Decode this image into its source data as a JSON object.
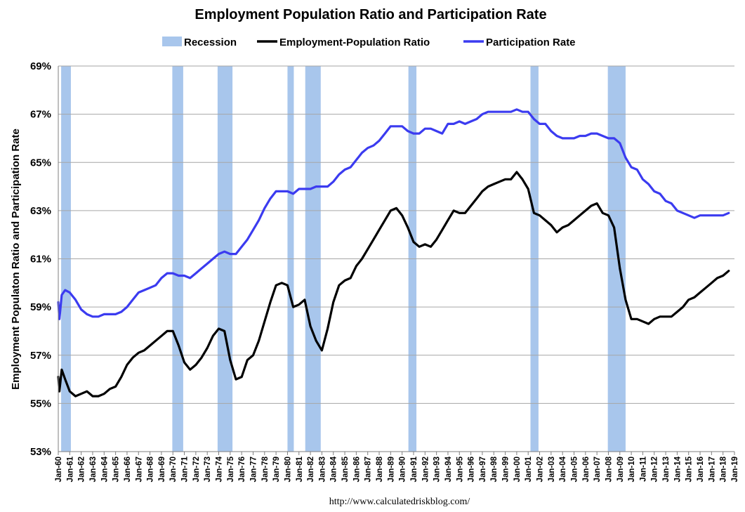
{
  "chart_data": {
    "type": "line",
    "title": "Employment Population Ratio and Participation Rate",
    "xlabel": "",
    "ylabel": "Employment Populaton Ratio and Participation Rate",
    "source": "http://www.calculatedriskblog.com/",
    "ylim": [
      53,
      69
    ],
    "xlim": [
      1960,
      2019
    ],
    "yticks": [
      "53%",
      "55%",
      "57%",
      "59%",
      "61%",
      "63%",
      "65%",
      "67%",
      "69%"
    ],
    "ytick_values": [
      53,
      55,
      57,
      59,
      61,
      63,
      65,
      67,
      69
    ],
    "xticks": [
      "Jan-60",
      "Jan-61",
      "Jan-62",
      "Jan-63",
      "Jan-64",
      "Jan-65",
      "Jan-66",
      "Jan-67",
      "Jan-68",
      "Jan-69",
      "Jan-70",
      "Jan-71",
      "Jan-72",
      "Jan-73",
      "Jan-74",
      "Jan-75",
      "Jan-76",
      "Jan-77",
      "Jan-78",
      "Jan-79",
      "Jan-80",
      "Jan-81",
      "Jan-82",
      "Jan-83",
      "Jan-84",
      "Jan-85",
      "Jan-86",
      "Jan-87",
      "Jan-88",
      "Jan-89",
      "Jan-90",
      "Jan-91",
      "Jan-92",
      "Jan-93",
      "Jan-94",
      "Jan-95",
      "Jan-96",
      "Jan-97",
      "Jan-98",
      "Jan-99",
      "Jan-00",
      "Jan-01",
      "Jan-02",
      "Jan-03",
      "Jan-04",
      "Jan-05",
      "Jan-06",
      "Jan-07",
      "Jan-08",
      "Jan-09",
      "Jan-10",
      "Jan-11",
      "Jan-12",
      "Jan-13",
      "Jan-14",
      "Jan-15",
      "Jan-16",
      "Jan-17",
      "Jan-18",
      "Jan-19"
    ],
    "grid": true,
    "legend": [
      {
        "name": "Recession",
        "color": "#a8c6ec",
        "kind": "box"
      },
      {
        "name": "Employment-Population Ratio",
        "color": "#000000",
        "kind": "line"
      },
      {
        "name": "Participation Rate",
        "color": "#3b3bf0",
        "kind": "line"
      }
    ],
    "legend_position": "top-center",
    "recessions": [
      [
        1960.25,
        1961.1
      ],
      [
        1969.95,
        1970.9
      ],
      [
        1973.9,
        1975.2
      ],
      [
        1980.0,
        1980.55
      ],
      [
        1981.55,
        1982.9
      ],
      [
        1990.55,
        1991.25
      ],
      [
        2001.2,
        2001.9
      ],
      [
        2007.95,
        2009.5
      ]
    ],
    "series": [
      {
        "name": "Participation Rate",
        "color": "#3b3bf0",
        "x": [
          1960.0,
          1960.1,
          1960.3,
          1960.6,
          1961.0,
          1961.5,
          1962.0,
          1962.5,
          1963.0,
          1963.5,
          1964.0,
          1964.5,
          1965.0,
          1965.5,
          1966.0,
          1966.5,
          1967.0,
          1967.5,
          1968.0,
          1968.5,
          1969.0,
          1969.5,
          1970.0,
          1970.5,
          1971.0,
          1971.5,
          1972.0,
          1972.5,
          1973.0,
          1973.5,
          1974.0,
          1974.5,
          1975.0,
          1975.5,
          1976.0,
          1976.5,
          1977.0,
          1977.5,
          1978.0,
          1978.5,
          1979.0,
          1979.5,
          1980.0,
          1980.5,
          1981.0,
          1981.5,
          1982.0,
          1982.5,
          1983.0,
          1983.5,
          1984.0,
          1984.5,
          1985.0,
          1985.5,
          1986.0,
          1986.5,
          1987.0,
          1987.5,
          1988.0,
          1988.5,
          1989.0,
          1989.5,
          1990.0,
          1990.5,
          1991.0,
          1991.5,
          1992.0,
          1992.5,
          1993.0,
          1993.5,
          1994.0,
          1994.5,
          1995.0,
          1995.5,
          1996.0,
          1996.5,
          1997.0,
          1997.5,
          1998.0,
          1998.5,
          1999.0,
          1999.5,
          2000.0,
          2000.5,
          2001.0,
          2001.5,
          2002.0,
          2002.5,
          2003.0,
          2003.5,
          2004.0,
          2004.5,
          2005.0,
          2005.5,
          2006.0,
          2006.5,
          2007.0,
          2007.5,
          2008.0,
          2008.5,
          2009.0,
          2009.5,
          2010.0,
          2010.5,
          2011.0,
          2011.5,
          2012.0,
          2012.5,
          2013.0,
          2013.5,
          2014.0,
          2014.5,
          2015.0,
          2015.5,
          2016.0,
          2016.5,
          2017.0,
          2017.5,
          2018.0,
          2018.5
        ],
        "values": [
          59.2,
          58.5,
          59.5,
          59.7,
          59.6,
          59.3,
          58.9,
          58.7,
          58.6,
          58.6,
          58.7,
          58.7,
          58.7,
          58.8,
          59.0,
          59.3,
          59.6,
          59.7,
          59.8,
          59.9,
          60.2,
          60.4,
          60.4,
          60.3,
          60.3,
          60.2,
          60.4,
          60.6,
          60.8,
          61.0,
          61.2,
          61.3,
          61.2,
          61.2,
          61.5,
          61.8,
          62.2,
          62.6,
          63.1,
          63.5,
          63.8,
          63.8,
          63.8,
          63.7,
          63.9,
          63.9,
          63.9,
          64.0,
          64.0,
          64.0,
          64.2,
          64.5,
          64.7,
          64.8,
          65.1,
          65.4,
          65.6,
          65.7,
          65.9,
          66.2,
          66.5,
          66.5,
          66.5,
          66.3,
          66.2,
          66.2,
          66.4,
          66.4,
          66.3,
          66.2,
          66.6,
          66.6,
          66.7,
          66.6,
          66.7,
          66.8,
          67.0,
          67.1,
          67.1,
          67.1,
          67.1,
          67.1,
          67.2,
          67.1,
          67.1,
          66.8,
          66.6,
          66.6,
          66.3,
          66.1,
          66.0,
          66.0,
          66.0,
          66.1,
          66.1,
          66.2,
          66.2,
          66.1,
          66.0,
          66.0,
          65.8,
          65.2,
          64.8,
          64.7,
          64.3,
          64.1,
          63.8,
          63.7,
          63.4,
          63.3,
          63.0,
          62.9,
          62.8,
          62.7,
          62.8,
          62.8,
          62.8,
          62.8,
          62.8,
          62.9
        ]
      },
      {
        "name": "Employment-Population Ratio",
        "color": "#000000",
        "x": [
          1960.0,
          1960.1,
          1960.3,
          1960.6,
          1961.0,
          1961.5,
          1962.0,
          1962.5,
          1963.0,
          1963.5,
          1964.0,
          1964.5,
          1965.0,
          1965.5,
          1966.0,
          1966.5,
          1967.0,
          1967.5,
          1968.0,
          1968.5,
          1969.0,
          1969.5,
          1970.0,
          1970.5,
          1971.0,
          1971.5,
          1972.0,
          1972.5,
          1973.0,
          1973.5,
          1974.0,
          1974.5,
          1975.0,
          1975.5,
          1976.0,
          1976.5,
          1977.0,
          1977.5,
          1978.0,
          1978.5,
          1979.0,
          1979.5,
          1980.0,
          1980.5,
          1981.0,
          1981.5,
          1982.0,
          1982.5,
          1983.0,
          1983.5,
          1984.0,
          1984.5,
          1985.0,
          1985.5,
          1986.0,
          1986.5,
          1987.0,
          1987.5,
          1988.0,
          1988.5,
          1989.0,
          1989.5,
          1990.0,
          1990.5,
          1991.0,
          1991.5,
          1992.0,
          1992.5,
          1993.0,
          1993.5,
          1994.0,
          1994.5,
          1995.0,
          1995.5,
          1996.0,
          1996.5,
          1997.0,
          1997.5,
          1998.0,
          1998.5,
          1999.0,
          1999.5,
          2000.0,
          2000.5,
          2001.0,
          2001.5,
          2002.0,
          2002.5,
          2003.0,
          2003.5,
          2004.0,
          2004.5,
          2005.0,
          2005.5,
          2006.0,
          2006.5,
          2007.0,
          2007.5,
          2008.0,
          2008.5,
          2009.0,
          2009.5,
          2010.0,
          2010.5,
          2011.0,
          2011.5,
          2012.0,
          2012.5,
          2013.0,
          2013.5,
          2014.0,
          2014.5,
          2015.0,
          2015.5,
          2016.0,
          2016.5,
          2017.0,
          2017.5,
          2018.0,
          2018.5
        ],
        "values": [
          56.1,
          55.5,
          56.4,
          56.0,
          55.5,
          55.3,
          55.4,
          55.5,
          55.3,
          55.3,
          55.4,
          55.6,
          55.7,
          56.1,
          56.6,
          56.9,
          57.1,
          57.2,
          57.4,
          57.6,
          57.8,
          58.0,
          58.0,
          57.4,
          56.7,
          56.4,
          56.6,
          56.9,
          57.3,
          57.8,
          58.1,
          58.0,
          56.8,
          56.0,
          56.1,
          56.8,
          57.0,
          57.6,
          58.4,
          59.2,
          59.9,
          60.0,
          59.9,
          59.0,
          59.1,
          59.3,
          58.2,
          57.6,
          57.2,
          58.1,
          59.2,
          59.9,
          60.1,
          60.2,
          60.7,
          61.0,
          61.4,
          61.8,
          62.2,
          62.6,
          63.0,
          63.1,
          62.8,
          62.3,
          61.7,
          61.5,
          61.6,
          61.5,
          61.8,
          62.2,
          62.6,
          63.0,
          62.9,
          62.9,
          63.2,
          63.5,
          63.8,
          64.0,
          64.1,
          64.2,
          64.3,
          64.3,
          64.6,
          64.3,
          63.9,
          62.9,
          62.8,
          62.6,
          62.4,
          62.1,
          62.3,
          62.4,
          62.6,
          62.8,
          63.0,
          63.2,
          63.3,
          62.9,
          62.8,
          62.3,
          60.6,
          59.3,
          58.5,
          58.5,
          58.4,
          58.3,
          58.5,
          58.6,
          58.6,
          58.6,
          58.8,
          59.0,
          59.3,
          59.4,
          59.6,
          59.8,
          60.0,
          60.2,
          60.3,
          60.5
        ]
      }
    ]
  }
}
